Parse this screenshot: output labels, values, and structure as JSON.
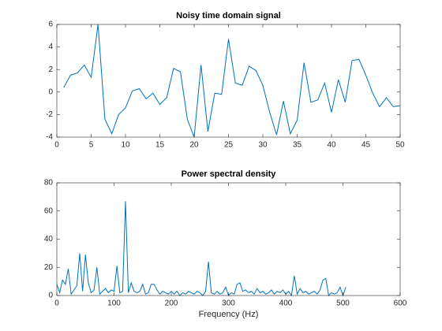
{
  "chart_data": [
    {
      "type": "line",
      "title": "Noisy time domain signal",
      "color": "#0072bd",
      "x": [
        1,
        2,
        3,
        4,
        5,
        6,
        7,
        8,
        9,
        10,
        11,
        12,
        13,
        14,
        15,
        16,
        17,
        18,
        19,
        20,
        21,
        22,
        23,
        24,
        25,
        26,
        27,
        28,
        29,
        30,
        31,
        32,
        33,
        34,
        35,
        36,
        37,
        38,
        39,
        40,
        41,
        42,
        43,
        44,
        45,
        46,
        47,
        48,
        49,
        50
      ],
      "values": [
        0.4,
        1.5,
        1.7,
        2.4,
        1.3,
        6.0,
        -2.4,
        -3.7,
        -2.0,
        -1.4,
        0.1,
        0.3,
        -0.6,
        -0.1,
        -1.1,
        -0.5,
        2.1,
        1.8,
        -2.4,
        -4.0,
        2.4,
        -3.5,
        -0.1,
        -0.2,
        4.7,
        0.8,
        0.6,
        2.3,
        1.9,
        0.6,
        -1.8,
        -3.8,
        -0.8,
        -3.7,
        -2.5,
        2.6,
        -0.9,
        -0.7,
        0.8,
        -1.8,
        1.1,
        -0.9,
        2.8,
        2.9,
        1.5,
        -0.1,
        -1.3,
        -0.5,
        -1.3,
        -1.2
      ],
      "xlim": [
        0,
        50
      ],
      "xticks": [
        0,
        5,
        10,
        15,
        20,
        25,
        30,
        35,
        40,
        45,
        50
      ],
      "ylim": [
        -4,
        6
      ],
      "yticks": [
        -4,
        -2,
        0,
        2,
        4,
        6
      ]
    },
    {
      "type": "line",
      "title": "Power spectral density",
      "xlabel": "Frequency (Hz)",
      "color": "#0072bd",
      "x": [
        0,
        5,
        10,
        15,
        20,
        25,
        30,
        35,
        40,
        45,
        50,
        55,
        60,
        65,
        70,
        75,
        80,
        85,
        90,
        95,
        100,
        105,
        110,
        115,
        120,
        125,
        130,
        135,
        140,
        145,
        150,
        155,
        160,
        165,
        170,
        175,
        180,
        185,
        190,
        195,
        200,
        205,
        210,
        215,
        220,
        225,
        230,
        235,
        240,
        245,
        250,
        255,
        260,
        265,
        270,
        275,
        280,
        285,
        290,
        295,
        300,
        305,
        310,
        315,
        320,
        325,
        330,
        335,
        340,
        345,
        350,
        355,
        360,
        365,
        370,
        375,
        380,
        385,
        390,
        395,
        400,
        405,
        410,
        415,
        420,
        425,
        430,
        435,
        440,
        445,
        450,
        455,
        460,
        465,
        470,
        475,
        480,
        485,
        490,
        495,
        500,
        505
      ],
      "values": [
        8,
        2,
        11,
        8,
        19,
        1,
        4,
        7,
        30,
        3,
        29,
        9,
        2,
        4,
        20,
        1,
        3,
        5,
        2,
        4,
        3,
        21,
        2,
        3,
        67,
        2,
        9,
        3,
        2,
        3,
        8,
        1,
        2,
        8,
        8,
        4,
        1,
        3,
        2,
        1,
        3,
        1,
        3,
        0,
        2,
        1,
        3,
        2,
        1,
        3,
        2,
        0,
        3,
        24,
        2,
        1,
        3,
        1,
        2,
        6,
        0,
        2,
        1,
        8,
        9,
        3,
        4,
        2,
        3,
        1,
        5,
        2,
        3,
        1,
        2,
        4,
        1,
        3,
        2,
        4,
        1,
        3,
        0,
        14,
        1,
        5,
        2,
        3,
        1,
        2,
        3,
        1,
        4,
        11,
        12,
        0,
        2,
        1,
        2,
        6,
        0,
        6
      ],
      "xlim": [
        0,
        600
      ],
      "xticks": [
        0,
        100,
        200,
        300,
        400,
        500,
        600
      ],
      "ylim": [
        0,
        80
      ],
      "yticks": [
        0,
        20,
        40,
        60,
        80
      ]
    }
  ]
}
